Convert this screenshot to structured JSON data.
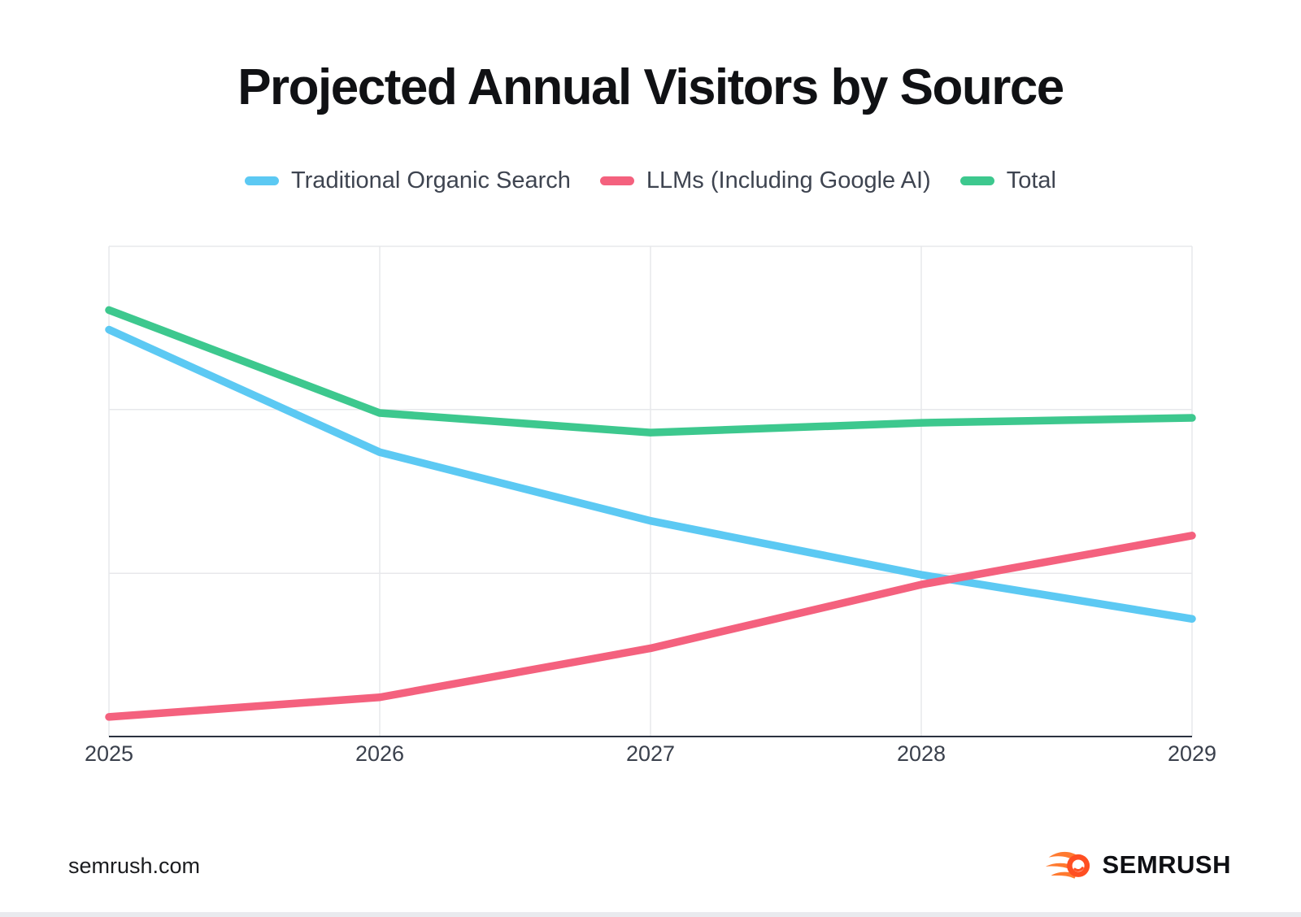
{
  "title": "Projected Annual Visitors by Source",
  "legend": [
    {
      "label": "Traditional Organic Search",
      "color": "#5CC9F3"
    },
    {
      "label": "LLMs (Including Google AI)",
      "color": "#F4617E"
    },
    {
      "label": "Total",
      "color": "#3DC88E"
    }
  ],
  "footer": {
    "site": "semrush.com",
    "logo": {
      "text": "SEMRUSH",
      "flame_color": "#FF7A30",
      "ball_color": "#FF4F22"
    }
  },
  "chart_style": {
    "gridline_color": "#E7E8EB",
    "axis_color": "#2B3240",
    "line_width": 9.5
  },
  "chart_data": {
    "type": "line",
    "title": "Projected Annual Visitors by Source",
    "x": [
      "2025",
      "2026",
      "2027",
      "2028",
      "2029"
    ],
    "series": [
      {
        "name": "Traditional Organic Search",
        "color": "#5CC9F3",
        "values": [
          83,
          58,
          44,
          33,
          24
        ]
      },
      {
        "name": "LLMs (Including Google AI)",
        "color": "#F4617E",
        "values": [
          4,
          8,
          18,
          31,
          41
        ]
      },
      {
        "name": "Total",
        "color": "#3DC88E",
        "values": [
          87,
          66,
          62,
          64,
          65
        ]
      }
    ],
    "xlabel": "",
    "ylabel": "",
    "ylim": [
      0,
      100
    ],
    "y_axis_labels_visible": false,
    "gridlines": {
      "horizontal_values": [
        33.3,
        66.7,
        100
      ],
      "vertical_at_each_x": true
    },
    "legend_position": "top",
    "note": "No numeric y-axis labels shown; values are relative percentages of plot height. Total equals Organic + LLMs."
  }
}
